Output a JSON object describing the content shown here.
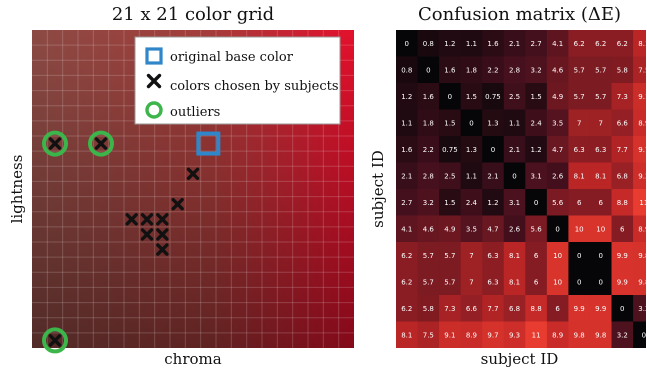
{
  "chart_data": [
    {
      "type": "scatter",
      "title": "21 x 21 color grid",
      "xlabel": "chroma",
      "ylabel": "lightness",
      "grid_size": 21,
      "grid": true,
      "legend_position": "top-right",
      "legend": {
        "original": "original base color",
        "chosen": "colors chosen by subjects",
        "outliers": "outliers"
      },
      "original": [
        {
          "col": 11,
          "row": 7
        }
      ],
      "chosen": [
        {
          "col": 1,
          "row": 7
        },
        {
          "col": 4,
          "row": 7
        },
        {
          "col": 10,
          "row": 9
        },
        {
          "col": 9,
          "row": 11
        },
        {
          "col": 6,
          "row": 12
        },
        {
          "col": 7,
          "row": 12
        },
        {
          "col": 8,
          "row": 12
        },
        {
          "col": 7,
          "row": 13
        },
        {
          "col": 8,
          "row": 13
        },
        {
          "col": 8,
          "row": 14
        },
        {
          "col": 1,
          "row": 20
        }
      ],
      "outliers": [
        {
          "col": 1,
          "row": 7
        },
        {
          "col": 4,
          "row": 7
        },
        {
          "col": 1,
          "row": 20
        }
      ]
    },
    {
      "type": "heatmap",
      "title": "Confusion matrix (ΔE)",
      "xlabel": "subject ID",
      "ylabel": "subject ID",
      "values": [
        [
          "0",
          "0.8",
          "1.2",
          "1.1",
          "1.6",
          "2.1",
          "2.7",
          "4.1",
          "6.2",
          "6.2",
          "6.2",
          "8.1"
        ],
        [
          "0.8",
          "0",
          "1.6",
          "1.8",
          "2.2",
          "2.8",
          "3.2",
          "4.6",
          "5.7",
          "5.7",
          "5.8",
          "7.5"
        ],
        [
          "1.2",
          "1.6",
          "0",
          "1.5",
          "0.75",
          "2.5",
          "1.5",
          "4.9",
          "5.7",
          "5.7",
          "7.3",
          "9.1"
        ],
        [
          "1.1",
          "1.8",
          "1.5",
          "0",
          "1.3",
          "1.1",
          "2.4",
          "3.5",
          "7",
          "7",
          "6.6",
          "8.9"
        ],
        [
          "1.6",
          "2.2",
          "0.75",
          "1.3",
          "0",
          "2.1",
          "1.2",
          "4.7",
          "6.3",
          "6.3",
          "7.7",
          "9.7"
        ],
        [
          "2.1",
          "2.8",
          "2.5",
          "1.1",
          "2.1",
          "0",
          "3.1",
          "2.6",
          "8.1",
          "8.1",
          "6.8",
          "9.3"
        ],
        [
          "2.7",
          "3.2",
          "1.5",
          "2.4",
          "1.2",
          "3.1",
          "0",
          "5.6",
          "6",
          "6",
          "8.8",
          "11"
        ],
        [
          "4.1",
          "4.6",
          "4.9",
          "3.5",
          "4.7",
          "2.6",
          "5.6",
          "0",
          "10",
          "10",
          "6",
          "8.9"
        ],
        [
          "6.2",
          "5.7",
          "5.7",
          "7",
          "6.3",
          "8.1",
          "6",
          "10",
          "0",
          "0",
          "9.9",
          "9.8"
        ],
        [
          "6.2",
          "5.7",
          "5.7",
          "7",
          "6.3",
          "8.1",
          "6",
          "10",
          "0",
          "0",
          "9.9",
          "9.8"
        ],
        [
          "6.2",
          "5.8",
          "7.3",
          "6.6",
          "7.7",
          "6.8",
          "8.8",
          "6",
          "9.9",
          "9.9",
          "0",
          "3.2"
        ],
        [
          "8.1",
          "7.5",
          "9.1",
          "8.9",
          "9.7",
          "9.3",
          "11",
          "8.9",
          "9.8",
          "9.8",
          "3.2",
          "0"
        ]
      ]
    }
  ]
}
